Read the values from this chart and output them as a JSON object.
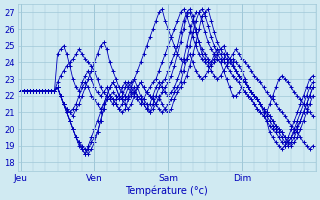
{
  "title": "Température (°c)",
  "ylabel_ticks": [
    18,
    19,
    20,
    21,
    22,
    23,
    24,
    25,
    26,
    27
  ],
  "ylim": [
    17.5,
    27.5
  ],
  "day_labels": [
    "Jeu",
    "Ven",
    "Sam",
    "Dim"
  ],
  "day_positions": [
    0,
    24,
    48,
    72
  ],
  "xlim": [
    -1,
    96
  ],
  "bg_color": "#d0eaf2",
  "grid_color": "#a0c8d8",
  "line_color": "#0000bb",
  "marker": "+",
  "series": [
    [
      22.3,
      22.3,
      22.3,
      22.3,
      22.3,
      22.3,
      22.3,
      22.3,
      22.3,
      22.3,
      22.3,
      22.3,
      24.5,
      24.8,
      25.0,
      24.5,
      23.8,
      23.0,
      22.5,
      22.3,
      22.8,
      23.2,
      23.5,
      23.0,
      22.5,
      22.2,
      22.0,
      22.2,
      22.5,
      22.0,
      21.8,
      21.5,
      21.2,
      21.5,
      21.8,
      22.0,
      22.5,
      23.0,
      23.5,
      24.0,
      24.5,
      25.0,
      25.5,
      26.0,
      26.5,
      27.0,
      27.2,
      26.5,
      26.0,
      25.5,
      25.0,
      24.5,
      24.2,
      24.0,
      24.2,
      24.5,
      24.0,
      23.5,
      23.2,
      23.0,
      23.2,
      23.5,
      24.0,
      24.5,
      24.8,
      24.5,
      24.2,
      23.8,
      23.5,
      23.2,
      23.0,
      22.8,
      22.5,
      22.2,
      22.0,
      21.8,
      21.5,
      21.2,
      21.0,
      20.8,
      21.0,
      21.5,
      22.0,
      22.5,
      23.0,
      23.2,
      23.0,
      22.8,
      22.5,
      22.2,
      22.0,
      21.8,
      21.5,
      21.2,
      21.0,
      20.8
    ],
    [
      22.3,
      22.3,
      22.3,
      22.3,
      22.3,
      22.3,
      22.3,
      22.3,
      22.3,
      22.3,
      22.3,
      22.3,
      22.5,
      22.0,
      21.5,
      21.0,
      20.5,
      20.0,
      19.5,
      19.0,
      18.8,
      18.5,
      19.0,
      19.5,
      20.0,
      20.5,
      21.0,
      21.5,
      22.0,
      22.5,
      22.8,
      22.5,
      22.0,
      21.8,
      22.0,
      22.5,
      22.8,
      23.0,
      22.5,
      22.0,
      21.8,
      21.5,
      21.0,
      21.5,
      22.0,
      22.5,
      22.8,
      23.0,
      23.5,
      24.0,
      24.5,
      25.0,
      25.8,
      26.5,
      27.0,
      27.2,
      26.8,
      26.0,
      25.2,
      24.5,
      24.2,
      24.0,
      23.8,
      24.0,
      24.2,
      24.0,
      23.5,
      23.0,
      22.5,
      22.0,
      22.0,
      22.2,
      22.5,
      22.2,
      22.0,
      21.8,
      21.5,
      21.2,
      21.0,
      20.8,
      20.5,
      20.2,
      20.0,
      19.8,
      19.5,
      19.2,
      19.0,
      19.2,
      19.5,
      19.8,
      20.2,
      20.5,
      21.0,
      21.5,
      22.0,
      22.5
    ],
    [
      22.3,
      22.3,
      22.3,
      22.3,
      22.3,
      22.3,
      22.3,
      22.3,
      22.3,
      22.3,
      22.3,
      22.3,
      22.5,
      22.0,
      21.5,
      21.0,
      20.5,
      20.0,
      19.5,
      19.2,
      18.8,
      18.5,
      18.8,
      19.2,
      19.5,
      19.8,
      20.5,
      21.2,
      21.8,
      22.0,
      22.2,
      22.0,
      21.8,
      22.0,
      22.5,
      22.8,
      22.5,
      22.2,
      22.0,
      21.8,
      21.5,
      21.2,
      21.0,
      21.2,
      21.5,
      22.0,
      21.5,
      21.2,
      21.0,
      21.2,
      21.8,
      22.2,
      22.5,
      22.8,
      23.2,
      23.8,
      24.5,
      25.2,
      26.0,
      26.8,
      27.0,
      27.2,
      26.5,
      25.8,
      25.2,
      24.8,
      24.5,
      24.2,
      24.0,
      24.2,
      24.0,
      23.8,
      23.5,
      23.0,
      22.5,
      22.2,
      22.0,
      21.8,
      21.5,
      21.2,
      20.8,
      20.5,
      20.2,
      20.0,
      19.8,
      19.5,
      19.2,
      19.0,
      19.2,
      19.5,
      20.0,
      20.5,
      21.0,
      21.5,
      22.0,
      22.5
    ],
    [
      22.3,
      22.3,
      22.3,
      22.3,
      22.3,
      22.3,
      22.3,
      22.3,
      22.3,
      22.3,
      22.3,
      22.3,
      22.5,
      22.0,
      21.5,
      21.0,
      20.5,
      20.0,
      19.5,
      19.2,
      19.0,
      18.8,
      18.5,
      18.8,
      19.2,
      19.8,
      20.5,
      21.2,
      21.8,
      22.0,
      21.8,
      21.5,
      21.2,
      21.0,
      21.2,
      21.8,
      22.2,
      22.5,
      22.0,
      21.8,
      21.5,
      21.2,
      21.5,
      22.0,
      22.5,
      22.8,
      22.5,
      22.2,
      22.0,
      22.2,
      22.5,
      23.0,
      23.5,
      24.2,
      25.0,
      25.8,
      26.5,
      27.0,
      27.0,
      26.5,
      25.8,
      25.2,
      24.8,
      24.5,
      24.2,
      24.0,
      24.2,
      24.5,
      24.2,
      24.0,
      23.5,
      23.2,
      23.0,
      22.8,
      22.5,
      22.2,
      22.0,
      21.8,
      21.5,
      21.0,
      20.5,
      19.8,
      19.5,
      19.2,
      19.0,
      18.8,
      19.0,
      19.5,
      20.0,
      20.5,
      21.0,
      21.5,
      22.0,
      22.5,
      23.0,
      23.2
    ],
    [
      22.3,
      22.3,
      22.3,
      22.3,
      22.3,
      22.3,
      22.3,
      22.3,
      22.3,
      22.3,
      22.3,
      22.3,
      22.5,
      22.0,
      21.5,
      21.2,
      21.0,
      20.8,
      21.2,
      21.5,
      22.0,
      22.5,
      23.0,
      23.5,
      24.0,
      24.5,
      25.0,
      25.2,
      24.8,
      24.0,
      23.5,
      23.0,
      22.5,
      22.2,
      22.0,
      21.8,
      22.0,
      22.2,
      22.5,
      22.8,
      22.5,
      22.2,
      22.0,
      21.8,
      21.5,
      21.2,
      21.0,
      21.2,
      21.5,
      21.8,
      22.2,
      22.5,
      22.8,
      23.5,
      24.2,
      25.0,
      25.8,
      26.5,
      27.0,
      27.2,
      26.8,
      26.2,
      25.5,
      25.0,
      24.5,
      24.2,
      24.0,
      24.0,
      24.2,
      24.5,
      24.8,
      24.5,
      24.2,
      24.0,
      23.8,
      23.5,
      23.2,
      23.0,
      22.8,
      22.5,
      22.2,
      22.0,
      21.8,
      21.5,
      21.2,
      21.0,
      20.8,
      20.5,
      20.2,
      20.0,
      19.8,
      19.5,
      19.2,
      19.0,
      18.8,
      19.0
    ],
    [
      22.3,
      22.3,
      22.3,
      22.3,
      22.3,
      22.3,
      22.3,
      22.3,
      22.3,
      22.3,
      22.3,
      22.3,
      22.5,
      22.0,
      21.5,
      21.2,
      21.0,
      21.2,
      21.5,
      22.0,
      22.5,
      22.8,
      22.5,
      22.0,
      21.8,
      21.5,
      21.2,
      21.5,
      22.0,
      22.5,
      22.8,
      22.5,
      22.0,
      21.8,
      21.5,
      21.2,
      21.5,
      22.0,
      22.5,
      22.8,
      22.5,
      22.2,
      22.0,
      21.8,
      21.5,
      21.8,
      22.2,
      22.5,
      22.8,
      23.2,
      23.8,
      24.5,
      25.2,
      26.0,
      26.8,
      27.0,
      26.5,
      25.8,
      25.2,
      24.8,
      24.5,
      24.2,
      24.0,
      24.2,
      24.5,
      24.8,
      25.0,
      24.5,
      24.2,
      23.8,
      23.5,
      23.2,
      23.0,
      22.8,
      22.5,
      22.2,
      22.0,
      21.8,
      21.5,
      21.2,
      21.0,
      20.8,
      20.5,
      20.2,
      20.0,
      19.8,
      19.5,
      19.2,
      19.0,
      19.2,
      19.5,
      20.0,
      20.5,
      21.0,
      21.5,
      22.0
    ],
    [
      22.3,
      22.3,
      22.3,
      22.3,
      22.3,
      22.3,
      22.3,
      22.3,
      22.3,
      22.3,
      22.3,
      22.3,
      22.8,
      23.2,
      23.5,
      23.8,
      24.0,
      24.2,
      24.5,
      24.8,
      24.5,
      24.2,
      24.0,
      23.8,
      23.5,
      23.0,
      22.5,
      22.2,
      22.0,
      21.8,
      21.5,
      21.8,
      22.0,
      22.5,
      22.8,
      22.5,
      22.2,
      22.0,
      21.8,
      21.5,
      21.8,
      22.2,
      22.5,
      22.8,
      23.0,
      23.5,
      24.0,
      24.5,
      25.0,
      25.5,
      26.0,
      26.5,
      27.0,
      27.2,
      26.8,
      26.2,
      25.5,
      25.0,
      24.5,
      24.2,
      24.0,
      23.8,
      23.5,
      23.2,
      23.0,
      23.2,
      23.5,
      23.8,
      24.0,
      23.8,
      23.5,
      23.2,
      23.0,
      22.8,
      22.5,
      22.2,
      22.0,
      21.8,
      21.5,
      21.2,
      21.0,
      20.8,
      20.5,
      20.2,
      20.0,
      19.8,
      19.5,
      19.2,
      19.5,
      20.0,
      20.5,
      21.0,
      21.5,
      22.0,
      22.5,
      22.8
    ]
  ]
}
